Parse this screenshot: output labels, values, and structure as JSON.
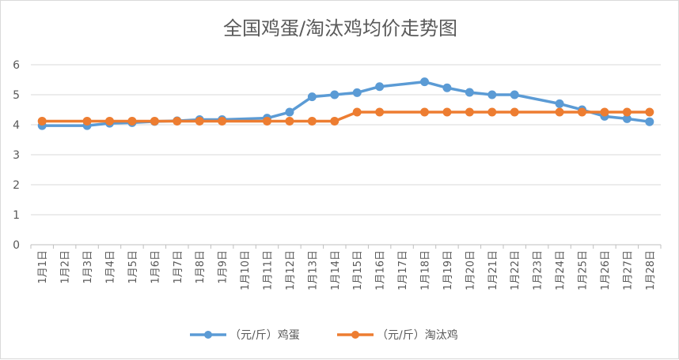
{
  "chart_data": {
    "type": "line",
    "title": "全国鸡蛋/淘汰鸡均价走势图",
    "xlabel": "",
    "ylabel": "",
    "ylim": [
      0,
      6
    ],
    "yticks": [
      "0",
      "1",
      "2",
      "3",
      "4",
      "5",
      "6"
    ],
    "categories": [
      "1月1日",
      "1月2日",
      "1月3日",
      "1月4日",
      "1月5日",
      "1月6日",
      "1月7日",
      "1月8日",
      "1月9日",
      "1月10日",
      "1月11日",
      "1月12日",
      "1月13日",
      "1月14日",
      "1月15日",
      "1月16日",
      "1月17日",
      "1月18日",
      "1月19日",
      "1月20日",
      "1月21日",
      "1月22日",
      "1月23日",
      "1月24日",
      "1月25日",
      "1月26日",
      "1月27日",
      "1月28日"
    ],
    "grid": true,
    "legend_position": "bottom",
    "series": [
      {
        "name": "（元/斤）鸡蛋",
        "color": "#5B9BD5",
        "points": [
          {
            "x": "1月1日",
            "y": 3.97
          },
          {
            "x": "1月3日",
            "y": 3.97
          },
          {
            "x": "1月4日",
            "y": 4.05
          },
          {
            "x": "1月5日",
            "y": 4.07
          },
          {
            "x": "1月6日",
            "y": 4.11
          },
          {
            "x": "1月7日",
            "y": 4.13
          },
          {
            "x": "1月8日",
            "y": 4.17
          },
          {
            "x": "1月9日",
            "y": 4.17
          },
          {
            "x": "1月11日",
            "y": 4.22
          },
          {
            "x": "1月12日",
            "y": 4.42
          },
          {
            "x": "1月13日",
            "y": 4.93
          },
          {
            "x": "1月14日",
            "y": 5.0
          },
          {
            "x": "1月15日",
            "y": 5.07
          },
          {
            "x": "1月16日",
            "y": 5.27
          },
          {
            "x": "1月18日",
            "y": 5.43
          },
          {
            "x": "1月19日",
            "y": 5.23
          },
          {
            "x": "1月20日",
            "y": 5.08
          },
          {
            "x": "1月21日",
            "y": 5.0
          },
          {
            "x": "1月22日",
            "y": 5.0
          },
          {
            "x": "1月24日",
            "y": 4.7
          },
          {
            "x": "1月25日",
            "y": 4.5
          },
          {
            "x": "1月26日",
            "y": 4.28
          },
          {
            "x": "1月27日",
            "y": 4.2
          },
          {
            "x": "1月28日",
            "y": 4.1
          }
        ]
      },
      {
        "name": "（元/斤）淘汰鸡",
        "color": "#ED7D31",
        "points": [
          {
            "x": "1月1日",
            "y": 4.12
          },
          {
            "x": "1月3日",
            "y": 4.12
          },
          {
            "x": "1月4日",
            "y": 4.12
          },
          {
            "x": "1月5日",
            "y": 4.12
          },
          {
            "x": "1月6日",
            "y": 4.12
          },
          {
            "x": "1月7日",
            "y": 4.12
          },
          {
            "x": "1月8日",
            "y": 4.12
          },
          {
            "x": "1月9日",
            "y": 4.12
          },
          {
            "x": "1月11日",
            "y": 4.12
          },
          {
            "x": "1月12日",
            "y": 4.12
          },
          {
            "x": "1月13日",
            "y": 4.12
          },
          {
            "x": "1月14日",
            "y": 4.12
          },
          {
            "x": "1月15日",
            "y": 4.42
          },
          {
            "x": "1月16日",
            "y": 4.42
          },
          {
            "x": "1月18日",
            "y": 4.42
          },
          {
            "x": "1月19日",
            "y": 4.42
          },
          {
            "x": "1月20日",
            "y": 4.42
          },
          {
            "x": "1月21日",
            "y": 4.42
          },
          {
            "x": "1月22日",
            "y": 4.42
          },
          {
            "x": "1月24日",
            "y": 4.42
          },
          {
            "x": "1月25日",
            "y": 4.42
          },
          {
            "x": "1月26日",
            "y": 4.42
          },
          {
            "x": "1月27日",
            "y": 4.42
          },
          {
            "x": "1月28日",
            "y": 4.42
          }
        ]
      }
    ]
  }
}
